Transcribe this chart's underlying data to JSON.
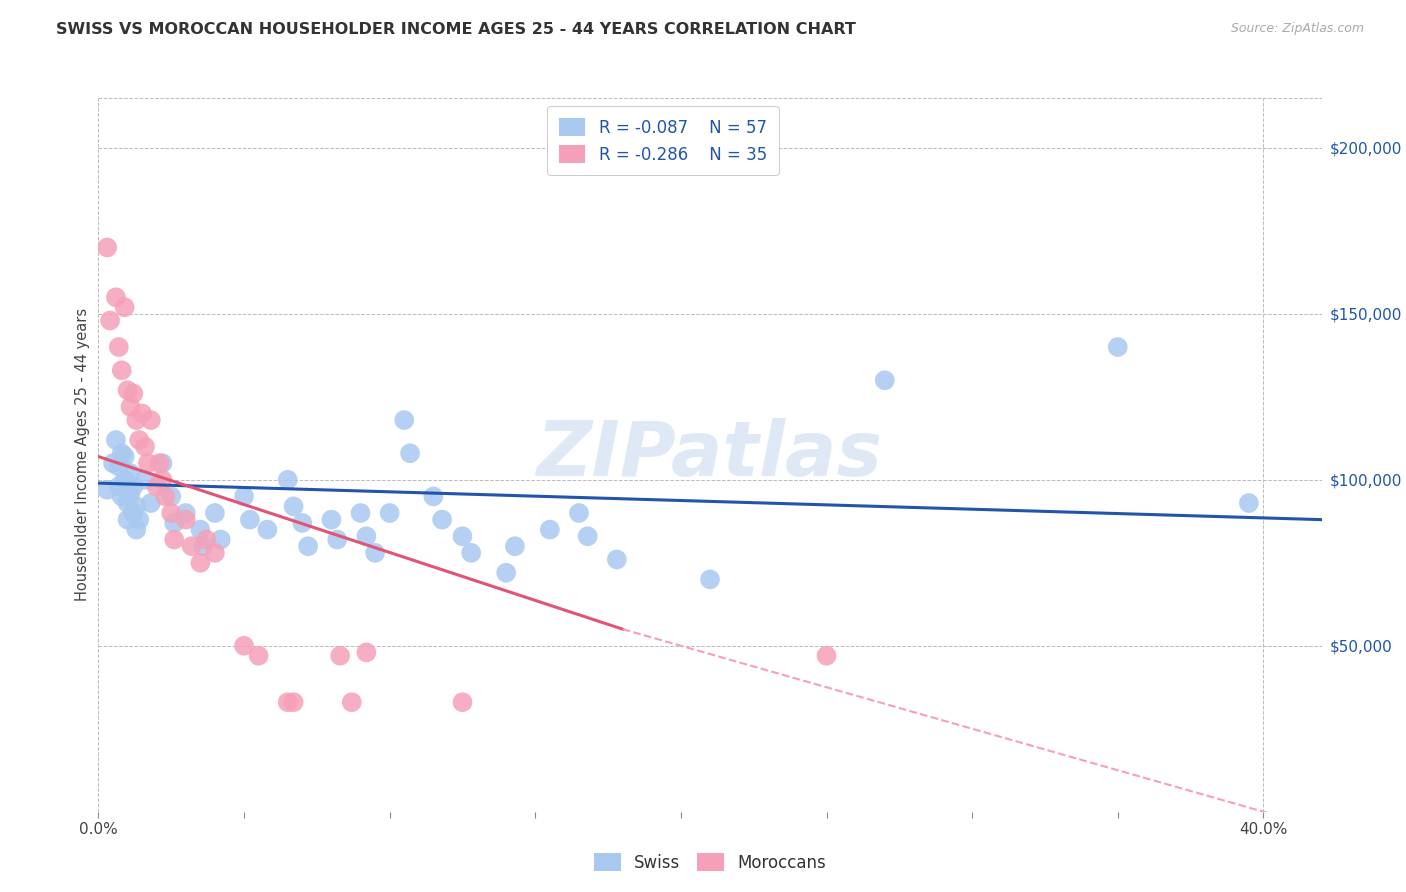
{
  "title": "SWISS VS MOROCCAN HOUSEHOLDER INCOME AGES 25 - 44 YEARS CORRELATION CHART",
  "source": "Source: ZipAtlas.com",
  "ylabel": "Householder Income Ages 25 - 44 years",
  "xlim": [
    0.0,
    0.42
  ],
  "ylim": [
    0,
    215000
  ],
  "yticks": [
    50000,
    100000,
    150000,
    200000
  ],
  "ytick_labels": [
    "$50,000",
    "$100,000",
    "$150,000",
    "$200,000"
  ],
  "xticks": [
    0.0,
    0.05,
    0.1,
    0.15,
    0.2,
    0.25,
    0.3,
    0.35,
    0.4
  ],
  "xtick_labels": [
    "0.0%",
    "",
    "",
    "",
    "",
    "",
    "",
    "",
    "40.0%"
  ],
  "swiss_r": -0.087,
  "swiss_n": 57,
  "moroccan_r": -0.286,
  "moroccan_n": 35,
  "swiss_color": "#A8C8F0",
  "moroccan_color": "#F5A0B8",
  "swiss_line_color": "#2255AA",
  "moroccan_line_color": "#E05575",
  "moroccan_dashed_color": "#F5A0B8",
  "watermark": "ZIPatlas",
  "background_color": "#FFFFFF",
  "grid_color": "#BBBBBB",
  "swiss_points": [
    [
      0.003,
      97000
    ],
    [
      0.005,
      105000
    ],
    [
      0.006,
      112000
    ],
    [
      0.007,
      98000
    ],
    [
      0.007,
      104000
    ],
    [
      0.008,
      108000
    ],
    [
      0.008,
      95000
    ],
    [
      0.009,
      100000
    ],
    [
      0.009,
      107000
    ],
    [
      0.01,
      93000
    ],
    [
      0.01,
      88000
    ],
    [
      0.011,
      102000
    ],
    [
      0.011,
      96000
    ],
    [
      0.012,
      90000
    ],
    [
      0.012,
      98000
    ],
    [
      0.013,
      85000
    ],
    [
      0.013,
      92000
    ],
    [
      0.014,
      88000
    ],
    [
      0.016,
      100000
    ],
    [
      0.018,
      93000
    ],
    [
      0.022,
      105000
    ],
    [
      0.025,
      95000
    ],
    [
      0.026,
      87000
    ],
    [
      0.03,
      90000
    ],
    [
      0.035,
      85000
    ],
    [
      0.036,
      80000
    ],
    [
      0.04,
      90000
    ],
    [
      0.042,
      82000
    ],
    [
      0.05,
      95000
    ],
    [
      0.052,
      88000
    ],
    [
      0.058,
      85000
    ],
    [
      0.065,
      100000
    ],
    [
      0.067,
      92000
    ],
    [
      0.07,
      87000
    ],
    [
      0.072,
      80000
    ],
    [
      0.08,
      88000
    ],
    [
      0.082,
      82000
    ],
    [
      0.09,
      90000
    ],
    [
      0.092,
      83000
    ],
    [
      0.095,
      78000
    ],
    [
      0.1,
      90000
    ],
    [
      0.105,
      118000
    ],
    [
      0.107,
      108000
    ],
    [
      0.115,
      95000
    ],
    [
      0.118,
      88000
    ],
    [
      0.125,
      83000
    ],
    [
      0.128,
      78000
    ],
    [
      0.14,
      72000
    ],
    [
      0.143,
      80000
    ],
    [
      0.155,
      85000
    ],
    [
      0.165,
      90000
    ],
    [
      0.168,
      83000
    ],
    [
      0.178,
      76000
    ],
    [
      0.21,
      70000
    ],
    [
      0.27,
      130000
    ],
    [
      0.35,
      140000
    ],
    [
      0.395,
      93000
    ]
  ],
  "moroccan_points": [
    [
      0.003,
      170000
    ],
    [
      0.004,
      148000
    ],
    [
      0.006,
      155000
    ],
    [
      0.007,
      140000
    ],
    [
      0.008,
      133000
    ],
    [
      0.009,
      152000
    ],
    [
      0.01,
      127000
    ],
    [
      0.011,
      122000
    ],
    [
      0.012,
      126000
    ],
    [
      0.013,
      118000
    ],
    [
      0.014,
      112000
    ],
    [
      0.015,
      120000
    ],
    [
      0.016,
      110000
    ],
    [
      0.017,
      105000
    ],
    [
      0.018,
      118000
    ],
    [
      0.02,
      98000
    ],
    [
      0.021,
      105000
    ],
    [
      0.022,
      100000
    ],
    [
      0.023,
      95000
    ],
    [
      0.025,
      90000
    ],
    [
      0.026,
      82000
    ],
    [
      0.03,
      88000
    ],
    [
      0.032,
      80000
    ],
    [
      0.035,
      75000
    ],
    [
      0.037,
      82000
    ],
    [
      0.04,
      78000
    ],
    [
      0.05,
      50000
    ],
    [
      0.055,
      47000
    ],
    [
      0.065,
      33000
    ],
    [
      0.067,
      33000
    ],
    [
      0.083,
      47000
    ],
    [
      0.087,
      33000
    ],
    [
      0.092,
      48000
    ],
    [
      0.125,
      33000
    ],
    [
      0.25,
      47000
    ]
  ],
  "swiss_trendline": [
    [
      0.0,
      99000
    ],
    [
      0.42,
      88000
    ]
  ],
  "moroccan_trendline_solid": [
    [
      0.0,
      107000
    ],
    [
      0.18,
      55000
    ]
  ],
  "moroccan_trendline_dashed": [
    [
      0.18,
      55000
    ],
    [
      0.5,
      -25000
    ]
  ]
}
